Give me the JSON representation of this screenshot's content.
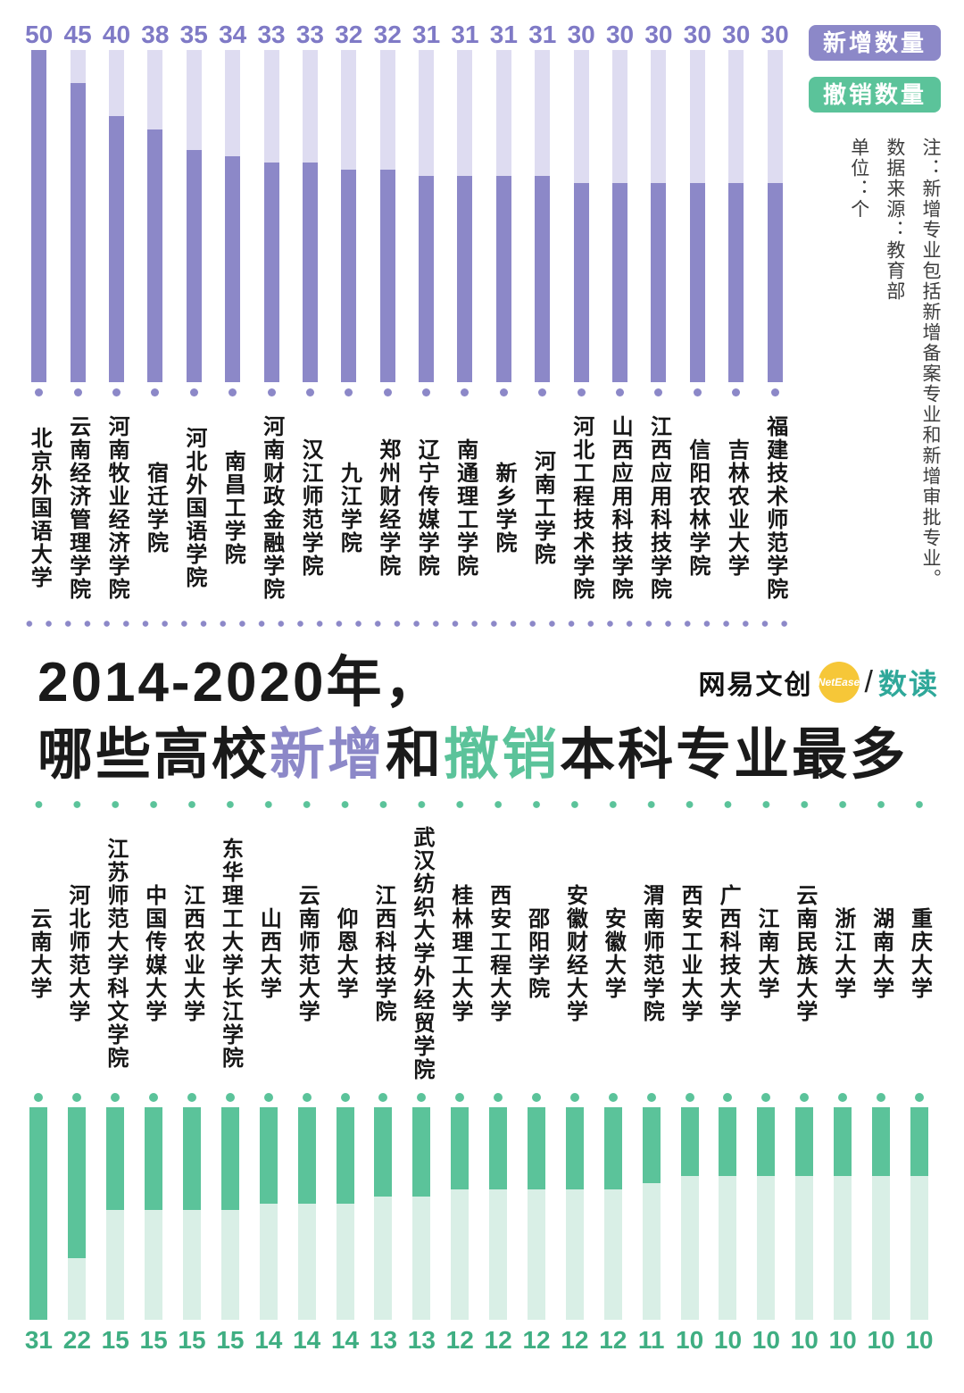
{
  "page": {
    "title_line1": "2014-2020年，",
    "title_line2": {
      "pre": "哪些高校",
      "added": "新增",
      "mid": "和",
      "removed": "撤销",
      "post": "本科专业最多"
    }
  },
  "brand": {
    "name": "网易文创",
    "badge": "NetEase",
    "slash": "/",
    "product": "数读"
  },
  "legend": {
    "added_label": "新增数量",
    "removed_label": "撤销数量"
  },
  "notes": {
    "unit": "单位：个",
    "source": "数据来源：教育部",
    "footnote": "注：新增专业包括新增备案专业和新增审批专业。"
  },
  "colors": {
    "purple": "#8C88C8",
    "purple_light": "#DEDCF1",
    "purple_text": "#7F7AC6",
    "green": "#5BC39A",
    "green_light": "#D9EFE6",
    "green_text": "#3FAE82",
    "ink": "#1A1A1A",
    "yellow": "#F6C738",
    "teal": "#2FA89A"
  },
  "chart_data": [
    {
      "type": "bar",
      "series_name": "新增数量",
      "direction": "up",
      "unit": "个",
      "ylim": [
        0,
        50
      ],
      "max": 50,
      "categories": [
        "北京外国语大学",
        "云南经济管理学院",
        "河南牧业经济学院",
        "宿迁学院",
        "河北外国语学院",
        "南昌工学院",
        "河南财政金融学院",
        "汉江师范学院",
        "九江学院",
        "郑州财经学院",
        "辽宁传媒学院",
        "南通理工学院",
        "新乡学院",
        "河南工学院",
        "河北工程技术学院",
        "山西应用科技学院",
        "江西应用科技学院",
        "信阳农林学院",
        "吉林农业大学",
        "福建技术师范学院"
      ],
      "values": [
        50,
        45,
        40,
        38,
        35,
        34,
        33,
        33,
        32,
        32,
        31,
        31,
        31,
        31,
        30,
        30,
        30,
        30,
        30,
        30
      ]
    },
    {
      "type": "bar",
      "series_name": "撤销数量",
      "direction": "down",
      "unit": "个",
      "ylim": [
        0,
        31
      ],
      "max": 31,
      "categories": [
        "云南大学",
        "河北师范大学",
        "江苏师范大学科文学院",
        "中国传媒大学",
        "江西农业大学",
        "东华理工大学长江学院",
        "山西大学",
        "云南师范大学",
        "仰恩大学",
        "江西科技学院",
        "武汉纺织大学外经贸学院",
        "桂林理工大学",
        "西安工程大学",
        "邵阳学院",
        "安徽财经大学",
        "安徽大学",
        "渭南师范学院",
        "西安工业大学",
        "广西科技大学",
        "江南大学",
        "云南民族大学",
        "浙江大学",
        "湖南大学",
        "重庆大学"
      ],
      "values": [
        31,
        22,
        15,
        15,
        15,
        15,
        14,
        14,
        14,
        13,
        13,
        12,
        12,
        12,
        12,
        12,
        11,
        10,
        10,
        10,
        10,
        10,
        10,
        10
      ]
    }
  ]
}
